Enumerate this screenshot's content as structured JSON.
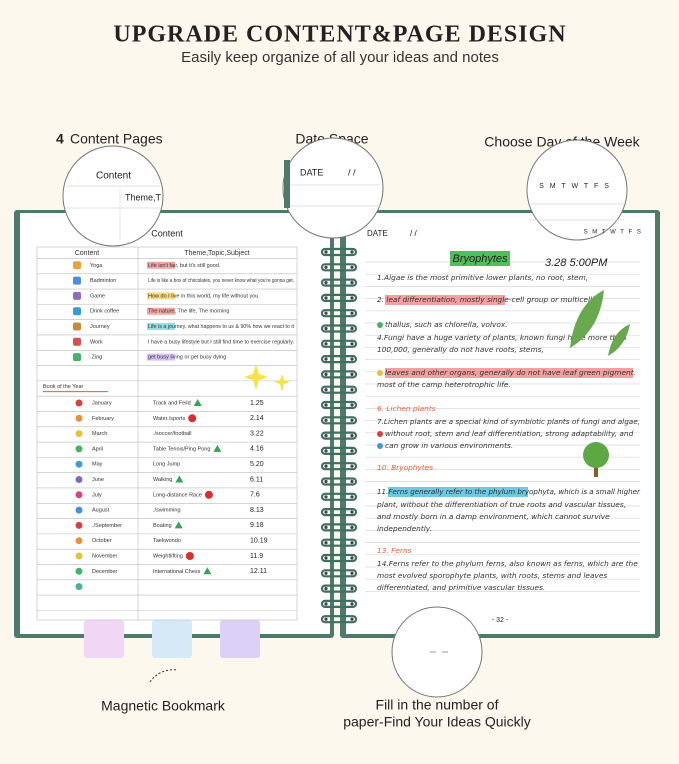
{
  "header": {
    "title": "UPGRADE CONTENT&PAGE DESIGN",
    "subtitle": "Easily keep organize of all your ideas and notes"
  },
  "callouts": {
    "content_pages_number": "4",
    "content_pages": "Content Pages",
    "date_space": "Date Space",
    "day_of_week": "Choose Day of the Week",
    "bookmark": "Magnetic Bookmark",
    "page_number_line1": "Fill in the number of",
    "page_number_line2": "paper-Find Your Ideas Quickly"
  },
  "zoom": {
    "content": "Content",
    "theme": "Theme,T",
    "date": "DATE",
    "date_slashes": "/   /",
    "weekdays": "S M T W T F S"
  },
  "left_page": {
    "title": "Content",
    "header": [
      "Content",
      "Theme,Topic,Subject"
    ],
    "items": [
      [
        "Yoga",
        "Life isn't fair, but it's still good."
      ],
      [
        "Badminton",
        "Life is like a box of chocolates, you never know what you're gonna get."
      ],
      [
        "Game",
        "How do I live in this world, my life without you."
      ],
      [
        "Drink coffee",
        "The nature, The life, The morning"
      ],
      [
        "Journey",
        "Life is a journey, what happens to us & 90% how we react to it"
      ],
      [
        "Work",
        "I have a busy lifestyle but I still find time to exercise regularly."
      ],
      [
        ".Zing",
        "get busy living or get busy dying"
      ]
    ],
    "year_title": "Book of the Year",
    "year": [
      [
        "January",
        "Track and Feild",
        "1.25"
      ],
      [
        "February",
        "Water./sports",
        "2.14"
      ],
      [
        "March",
        "./soccer/football",
        "3.22"
      ],
      [
        "April",
        "Table Tennis/Ping Pong",
        "4.16"
      ],
      [
        "May",
        "Long Jump",
        "5.20"
      ],
      [
        "June",
        "Walking",
        "6.11"
      ],
      [
        "July",
        "Long-distance Race",
        "7.6"
      ],
      [
        "August",
        "./swimming",
        "8.13"
      ],
      [
        "./September",
        "Boating",
        "9.18"
      ],
      [
        "October",
        "Taekwondo",
        "10.19"
      ],
      [
        "November",
        "Weightlifting",
        "11.9"
      ],
      [
        "December",
        "International Chess",
        "12.11"
      ]
    ]
  },
  "right_page": {
    "date": "DATE",
    "date_slashes": "/   /",
    "weekdays": "S M T W T F S",
    "heading": "Bryophytes",
    "time": "3.28 5:00PM",
    "lines": [
      "1.Algae is the most primitive lower plants, no root, stem,",
      "2. leaf differentiation, mostly single-cell group or multicelli",
      "thallus, such as chlorella, volvox.",
      "4.Fungi have a huge variety of plants, known fungi have more than",
      "100,000, generally do not have roots, stems,",
      "leaves and other organs, generally do not have leaf green pigment.",
      "most of the camp heterotrophic life.",
      "6. Lichen plants",
      "7.Lichen plants are a special kind of symbiotic plants of fungi and algae,",
      "without root, stem and leaf differentiation, strong adaptability, and",
      "can grow in various environments.",
      "10. Bryophytes",
      "11.Ferns generally refer to the phylum bryophyta, which is a small higher",
      "plant, without the differentiation of true roots and vascular tissues,",
      "and mostly born in a damp environment, which cannot survive",
      "independently.",
      "13. Ferns",
      "14.Ferns refer to the phylum ferns, also known as ferns, which are the",
      "most evolved sporophyte plants, with roots, stems and leaves",
      "differentiated, and primitive vascular tissues."
    ],
    "page_number": "- 32 -"
  }
}
